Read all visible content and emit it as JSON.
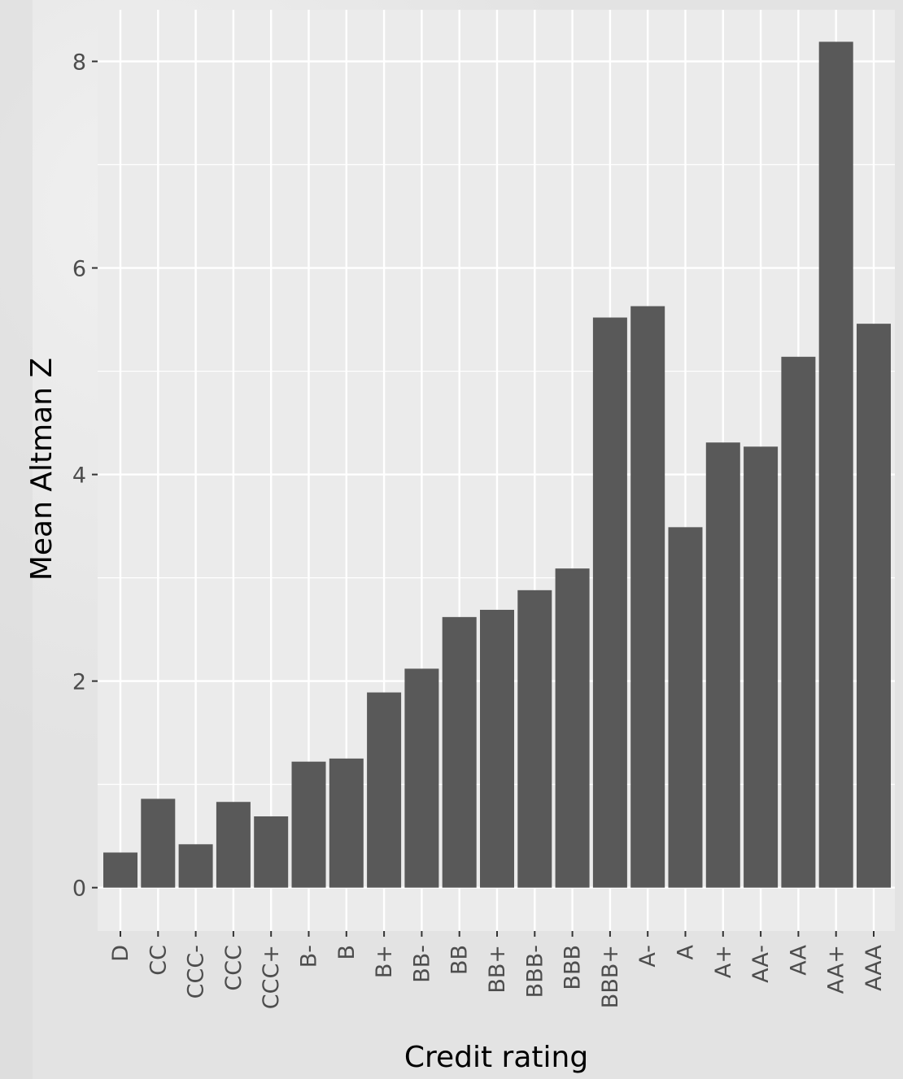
{
  "chart_data": {
    "type": "bar",
    "title": "",
    "xlabel": "Credit rating",
    "ylabel": "Mean Altman Z",
    "categories": [
      "D",
      "CC",
      "CCC-",
      "CCC",
      "CCC+",
      "B-",
      "B",
      "B+",
      "BB-",
      "BB",
      "BB+",
      "BBB-",
      "BBB",
      "BBB+",
      "A-",
      "A",
      "A+",
      "AA-",
      "AA",
      "AA+",
      "AAA"
    ],
    "values": [
      0.34,
      0.86,
      0.42,
      0.83,
      0.69,
      1.22,
      1.25,
      1.89,
      2.12,
      2.62,
      2.69,
      2.88,
      3.09,
      5.52,
      5.63,
      3.49,
      4.31,
      4.27,
      5.14,
      8.19,
      5.46
    ],
    "ylim": [
      -0.42,
      8.5
    ],
    "yticks": [
      0,
      2,
      4,
      6,
      8
    ],
    "grid": true,
    "colors": {
      "bar": "#595959",
      "panel": "#ebebeb",
      "grid": "#ffffff",
      "tick": "#333333"
    }
  }
}
